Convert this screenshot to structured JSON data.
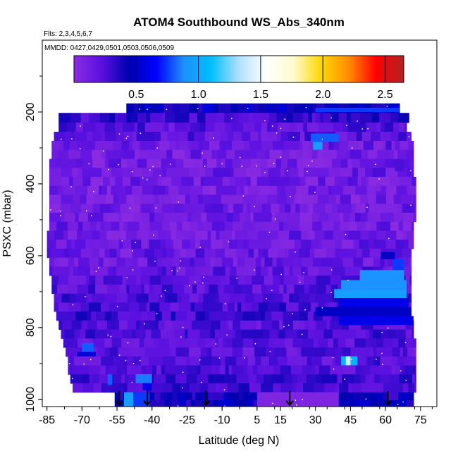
{
  "chart_data": {
    "type": "heatmap",
    "title": "ATOM4 Southbound WS_Abs_340nm",
    "flights_note": "Flts: 2,3,4,5,6,7",
    "dates_note": "MMDD: 0427,0429,0501,0503,0506,0509",
    "xlabel": "Latitude (deg N)",
    "ylabel": "PSXC (mbar)",
    "xlim": [
      -87,
      82
    ],
    "ylim": [
      1020,
      0
    ],
    "x_ticks": [
      -85,
      -70,
      -55,
      -40,
      -25,
      -10,
      5,
      15,
      30,
      45,
      60,
      75
    ],
    "y_ticks": [
      200,
      400,
      600,
      800,
      1000
    ],
    "colorbar": {
      "range": [
        0.0,
        2.65
      ],
      "ticks": [
        0.5,
        1.0,
        1.5,
        2.0,
        2.5
      ],
      "tick_labels": [
        "0.5",
        "1.0",
        "1.5",
        "2.0",
        "2.5"
      ],
      "colors": [
        "#8a2be2",
        "#5a10e0",
        "#0000b0",
        "#0000ff",
        "#1e90ff",
        "#00bfff",
        "#b0e0ff",
        "#ffffff",
        "#fffacd",
        "#ffd700",
        "#ff8c00",
        "#ff0000",
        "#b22222"
      ]
    },
    "profile_markers_lat": [
      -54,
      -42,
      -17,
      19,
      61
    ],
    "profile_pressure": 1000,
    "rows": [
      {
        "p": 188,
        "lat": [
          -51,
          66
        ],
        "value": 0.45
      },
      {
        "p": 217,
        "lat": [
          -80,
          70
        ],
        "value": 0.3
      },
      {
        "p": 242,
        "lat": [
          -80,
          69
        ],
        "value": 0.22
      },
      {
        "p": 268,
        "lat": [
          -82,
          71
        ],
        "value": 0.2
      },
      {
        "p": 293,
        "lat": [
          -83,
          72
        ],
        "value": 0.15
      },
      {
        "p": 318,
        "lat": [
          -83,
          72
        ],
        "value": 0.12
      },
      {
        "p": 343,
        "lat": [
          -84,
          72
        ],
        "value": 0.12
      },
      {
        "p": 368,
        "lat": [
          -84,
          72
        ],
        "value": 0.14
      },
      {
        "p": 393,
        "lat": [
          -84,
          73
        ],
        "value": 0.13
      },
      {
        "p": 418,
        "lat": [
          -84,
          73
        ],
        "value": 0.12
      },
      {
        "p": 443,
        "lat": [
          -84,
          73
        ],
        "value": 0.12
      },
      {
        "p": 468,
        "lat": [
          -84,
          73
        ],
        "value": 0.13
      },
      {
        "p": 493,
        "lat": [
          -84,
          73
        ],
        "value": 0.14
      },
      {
        "p": 518,
        "lat": [
          -84,
          72
        ],
        "value": 0.13
      },
      {
        "p": 543,
        "lat": [
          -85,
          72
        ],
        "value": 0.14
      },
      {
        "p": 568,
        "lat": [
          -85,
          72
        ],
        "value": 0.15
      },
      {
        "p": 593,
        "lat": [
          -85,
          71
        ],
        "value": 0.15
      },
      {
        "p": 618,
        "lat": [
          -84,
          71
        ],
        "value": 0.16
      },
      {
        "p": 643,
        "lat": [
          -84,
          71
        ],
        "value": 0.2
      },
      {
        "p": 668,
        "lat": [
          -83,
          71
        ],
        "value": 0.2
      },
      {
        "p": 693,
        "lat": [
          -83,
          71
        ],
        "value": 0.22
      },
      {
        "p": 718,
        "lat": [
          -82,
          71
        ],
        "value": 0.24
      },
      {
        "p": 743,
        "lat": [
          -82,
          71
        ],
        "value": 0.26
      },
      {
        "p": 768,
        "lat": [
          -81,
          71
        ],
        "value": 0.28
      },
      {
        "p": 793,
        "lat": [
          -80,
          72
        ],
        "value": 0.22
      },
      {
        "p": 818,
        "lat": [
          -79,
          72
        ],
        "value": 0.25
      },
      {
        "p": 843,
        "lat": [
          -78,
          73
        ],
        "value": 0.22
      },
      {
        "p": 868,
        "lat": [
          -77,
          73
        ],
        "value": 0.2
      },
      {
        "p": 893,
        "lat": [
          -76,
          73
        ],
        "value": 0.22
      },
      {
        "p": 918,
        "lat": [
          -76,
          73
        ],
        "value": 0.25
      },
      {
        "p": 943,
        "lat": [
          -75,
          73
        ],
        "value": 0.3
      },
      {
        "p": 968,
        "lat": [
          -74,
          73
        ],
        "value": 0.28
      },
      {
        "p": 993,
        "lat": [
          -56,
          72
        ],
        "value": 0.4
      },
      {
        "p": 1012,
        "lat": [
          -56,
          72
        ],
        "value": 0.42
      }
    ],
    "features": [
      {
        "p": [
          188,
          200
        ],
        "lat": [
          30,
          66
        ],
        "value": 0.75
      },
      {
        "p": [
          260,
          283
        ],
        "lat": [
          28,
          40
        ],
        "value": 0.8
      },
      {
        "p": [
          283,
          305
        ],
        "lat": [
          29,
          33
        ],
        "value": 0.95
      },
      {
        "p": [
          335,
          365
        ],
        "lat": [
          64,
          68
        ],
        "value": 0.25
      },
      {
        "p": [
          400,
          420
        ],
        "lat": [
          56,
          58
        ],
        "value": 0.05
      },
      {
        "p": [
          590,
          610
        ],
        "lat": [
          58,
          64
        ],
        "value": 0.5
      },
      {
        "p": [
          610,
          640
        ],
        "lat": [
          63,
          68
        ],
        "value": 0.75
      },
      {
        "p": [
          640,
          668
        ],
        "lat": [
          49,
          68
        ],
        "value": 0.9
      },
      {
        "p": [
          668,
          693
        ],
        "lat": [
          41,
          69
        ],
        "value": 0.9
      },
      {
        "p": [
          693,
          718
        ],
        "lat": [
          38,
          69
        ],
        "value": 0.95
      },
      {
        "p": [
          718,
          743
        ],
        "lat": [
          40,
          70
        ],
        "value": 0.6
      },
      {
        "p": [
          743,
          768
        ],
        "lat": [
          30,
          71
        ],
        "value": 0.5
      },
      {
        "p": [
          768,
          793
        ],
        "lat": [
          40,
          72
        ],
        "value": 0.6
      },
      {
        "p": [
          843,
          868
        ],
        "lat": [
          -70,
          -65
        ],
        "value": 0.8
      },
      {
        "p": [
          868,
          880
        ],
        "lat": [
          -72,
          -64
        ],
        "value": 0.55
      },
      {
        "p": [
          880,
          905
        ],
        "lat": [
          41,
          48
        ],
        "value": 1.05
      },
      {
        "p": [
          880,
          905
        ],
        "lat": [
          43,
          45
        ],
        "value": 1.4
      },
      {
        "p": [
          930,
          955
        ],
        "lat": [
          -47,
          -40
        ],
        "value": 0.85
      },
      {
        "p": [
          930,
          960
        ],
        "lat": [
          -59,
          -57
        ],
        "value": 0.8
      },
      {
        "p": [
          955,
          975
        ],
        "lat": [
          -44,
          -40
        ],
        "value": 0.6
      },
      {
        "p": [
          980,
          1020
        ],
        "lat": [
          -52,
          -48
        ],
        "value": 0.95
      },
      {
        "p": [
          980,
          1020
        ],
        "lat": [
          -48,
          -41
        ],
        "value": 0.75
      },
      {
        "p": [
          980,
          1020
        ],
        "lat": [
          5,
          40
        ],
        "value": 0.05
      }
    ]
  }
}
